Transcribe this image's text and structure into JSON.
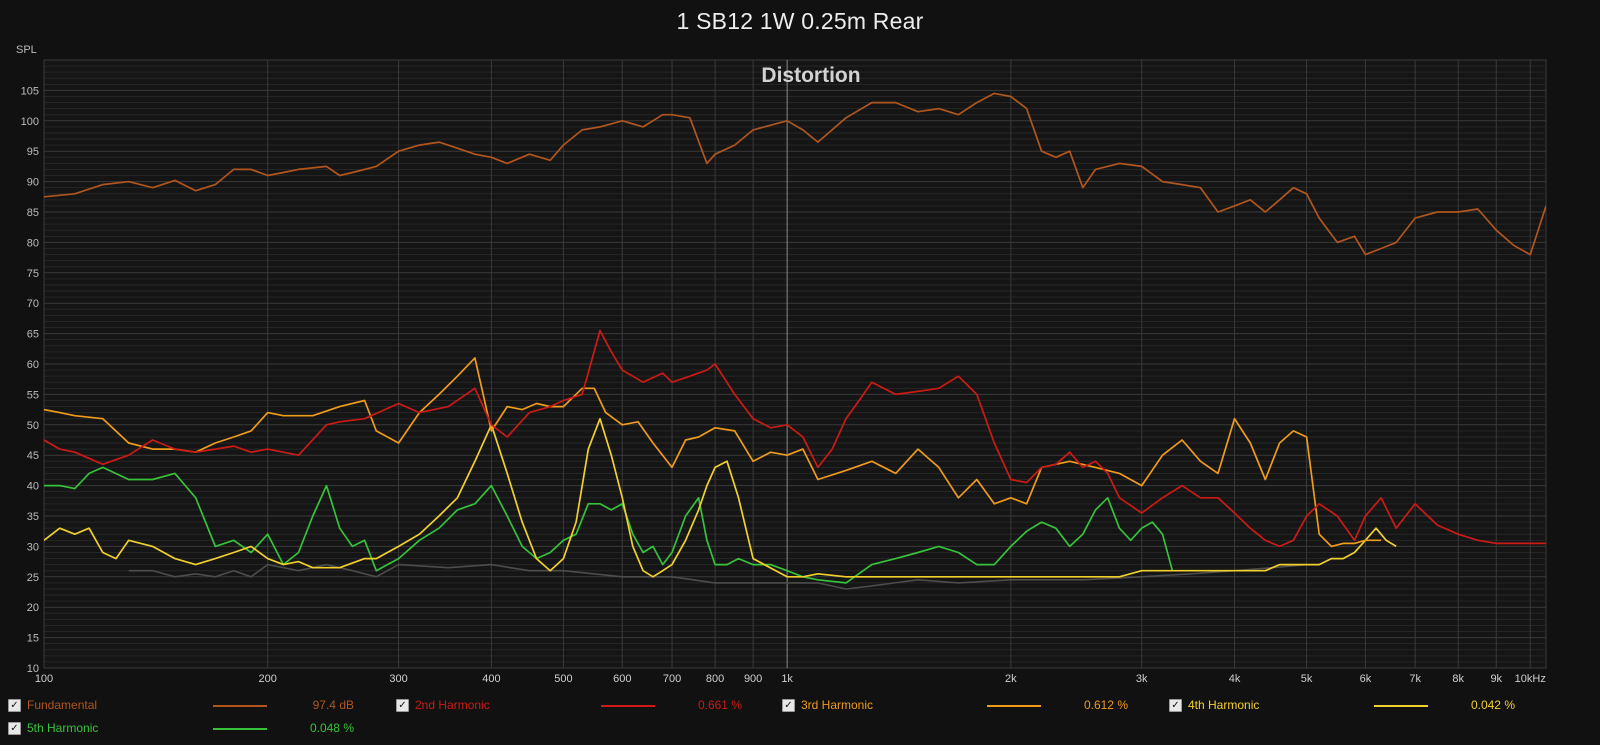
{
  "window": {
    "title": "1 SB12 1W 0.25m Rear"
  },
  "chart_data": {
    "type": "line",
    "title": "Distortion",
    "ylabel": "SPL",
    "xlabel": "",
    "xscale": "log",
    "xlim": [
      100,
      10500
    ],
    "ylim": [
      10,
      110
    ],
    "grid": true,
    "legend_placement": "bottom",
    "y_ticks": [
      "10",
      "15",
      "20",
      "25",
      "30",
      "35",
      "40",
      "45",
      "50",
      "55",
      "60",
      "65",
      "70",
      "75",
      "80",
      "85",
      "90",
      "95",
      "100",
      "105"
    ],
    "x_ticks": [
      {
        "value": 100,
        "label": "100"
      },
      {
        "value": 200,
        "label": "200"
      },
      {
        "value": 300,
        "label": "300"
      },
      {
        "value": 400,
        "label": "400"
      },
      {
        "value": 500,
        "label": "500"
      },
      {
        "value": 600,
        "label": "600"
      },
      {
        "value": 700,
        "label": "700"
      },
      {
        "value": 800,
        "label": "800"
      },
      {
        "value": 900,
        "label": "900"
      },
      {
        "value": 1000,
        "label": "1k"
      },
      {
        "value": 2000,
        "label": "2k"
      },
      {
        "value": 3000,
        "label": "3k"
      },
      {
        "value": 4000,
        "label": "4k"
      },
      {
        "value": 5000,
        "label": "5k"
      },
      {
        "value": 6000,
        "label": "6k"
      },
      {
        "value": 7000,
        "label": "7k"
      },
      {
        "value": 8000,
        "label": "8k"
      },
      {
        "value": 9000,
        "label": "9k"
      },
      {
        "value": 10000,
        "label": "10kHz"
      }
    ],
    "series": [
      {
        "name": "Fundamental",
        "color": "#b0561e",
        "x": [
          100,
          110,
          120,
          130,
          140,
          150,
          160,
          170,
          180,
          190,
          200,
          210,
          220,
          240,
          250,
          260,
          280,
          300,
          320,
          340,
          360,
          380,
          400,
          420,
          450,
          480,
          500,
          530,
          560,
          600,
          640,
          680,
          700,
          740,
          780,
          800,
          850,
          900,
          1000,
          1050,
          1100,
          1200,
          1300,
          1400,
          1500,
          1600,
          1700,
          1800,
          1900,
          2000,
          2100,
          2200,
          2300,
          2400,
          2500,
          2600,
          2800,
          3000,
          3200,
          3400,
          3600,
          3800,
          4000,
          4200,
          4400,
          4600,
          4800,
          5000,
          5200,
          5500,
          5800,
          6000,
          6300,
          6600,
          7000,
          7500,
          8000,
          8500,
          9000,
          9500,
          10000,
          10500
        ],
        "values": [
          87.5,
          88,
          89.5,
          90,
          89,
          90.2,
          88.5,
          89.5,
          92,
          92,
          91,
          91.5,
          92,
          92.5,
          91,
          91.5,
          92.5,
          95,
          96,
          96.5,
          95.5,
          94.5,
          94,
          93,
          94.5,
          93.5,
          96,
          98.5,
          99,
          100,
          99,
          101,
          101,
          100.5,
          93,
          94.5,
          96,
          98.5,
          100,
          98.5,
          96.5,
          100.5,
          103,
          103,
          101.5,
          102,
          101,
          103,
          104.5,
          104,
          102,
          95,
          94,
          95,
          89,
          92,
          93,
          92.5,
          90,
          89.5,
          89,
          85,
          86,
          87,
          85,
          87,
          89,
          88,
          84,
          80,
          81,
          78,
          79,
          80,
          84,
          85,
          85,
          85.5,
          82,
          79.5,
          78,
          86
        ]
      },
      {
        "name": "2nd Harmonic",
        "color": "#cc1b14",
        "x": [
          100,
          105,
          110,
          120,
          130,
          140,
          150,
          160,
          170,
          180,
          190,
          200,
          220,
          240,
          250,
          270,
          300,
          320,
          350,
          380,
          400,
          420,
          450,
          480,
          500,
          530,
          560,
          580,
          600,
          640,
          680,
          700,
          740,
          780,
          800,
          850,
          900,
          950,
          1000,
          1050,
          1100,
          1150,
          1200,
          1250,
          1300,
          1400,
          1500,
          1600,
          1700,
          1800,
          1900,
          2000,
          2100,
          2200,
          2300,
          2400,
          2500,
          2600,
          2700,
          2800,
          3000,
          3200,
          3400,
          3600,
          3800,
          4000,
          4200,
          4400,
          4600,
          4800,
          5000,
          5200,
          5500,
          5800,
          6000,
          6300,
          6600,
          7000,
          7500,
          8000,
          8500,
          9000,
          9500,
          10000,
          10500
        ],
        "values": [
          47.5,
          46,
          45.5,
          43.5,
          45,
          47.5,
          46,
          45.5,
          46,
          46.5,
          45.5,
          46,
          45,
          50,
          50.5,
          51,
          53.5,
          52,
          53,
          56,
          50,
          48,
          52,
          53,
          54,
          55,
          65.5,
          62,
          59,
          57,
          58.5,
          57,
          58,
          59,
          60,
          55,
          51,
          49.5,
          50,
          48,
          43,
          46,
          51,
          54,
          57,
          55,
          55.5,
          56,
          58,
          55,
          47,
          41,
          40.5,
          43,
          43.5,
          45.5,
          43,
          44,
          42,
          38,
          35.5,
          38,
          40,
          38,
          38,
          35.5,
          33,
          31,
          30,
          31,
          35,
          37,
          35,
          31,
          35,
          38,
          33,
          37,
          33.5,
          32,
          31,
          30.5,
          30.5,
          30.5,
          30.5
        ]
      },
      {
        "name": "3rd Harmonic",
        "color": "#ef9b1c",
        "x": [
          100,
          105,
          110,
          120,
          130,
          140,
          150,
          160,
          170,
          180,
          190,
          200,
          210,
          230,
          250,
          270,
          280,
          300,
          320,
          340,
          360,
          380,
          400,
          420,
          440,
          460,
          480,
          500,
          530,
          550,
          570,
          600,
          630,
          660,
          700,
          730,
          760,
          800,
          850,
          900,
          950,
          1000,
          1050,
          1100,
          1200,
          1300,
          1400,
          1500,
          1600,
          1700,
          1800,
          1900,
          2000,
          2100,
          2200,
          2400,
          2600,
          2800,
          3000,
          3200,
          3400,
          3600,
          3800,
          4000,
          4200,
          4400,
          4600,
          4800,
          5000,
          5200,
          5400,
          5600,
          5800,
          6000,
          6300
        ],
        "values": [
          52.5,
          52,
          51.5,
          51,
          47,
          46,
          46,
          45.5,
          47,
          48,
          49,
          52,
          51.5,
          51.5,
          53,
          54,
          49,
          47,
          52,
          55,
          58,
          61,
          49,
          53,
          52.5,
          53.5,
          53,
          53,
          56,
          56,
          52,
          50,
          50.5,
          47,
          43,
          47.5,
          48,
          49.5,
          49,
          44,
          45.5,
          45,
          46,
          41,
          42.5,
          44,
          42,
          46,
          43,
          38,
          41,
          37,
          38,
          37,
          43,
          44,
          43,
          42,
          40,
          45,
          47.5,
          44,
          42,
          51,
          47,
          41,
          47,
          49,
          48,
          32,
          30,
          30.5,
          30.5,
          31,
          31
        ]
      },
      {
        "name": "4th Harmonic",
        "color": "#f1d02e",
        "x": [
          100,
          105,
          110,
          115,
          120,
          125,
          130,
          140,
          150,
          160,
          170,
          180,
          190,
          200,
          210,
          220,
          230,
          250,
          270,
          280,
          300,
          320,
          340,
          360,
          380,
          400,
          420,
          440,
          460,
          480,
          500,
          520,
          540,
          560,
          580,
          600,
          620,
          640,
          660,
          680,
          700,
          730,
          760,
          780,
          800,
          830,
          860,
          900,
          1000,
          1050,
          1100,
          1200,
          1300,
          1400,
          1500,
          1600,
          1700,
          1800,
          1900,
          2000,
          2200,
          2400,
          2600,
          2800,
          3000,
          3200,
          3400,
          3600,
          3800,
          4000,
          4200,
          4400,
          4600,
          4800,
          5000,
          5200,
          5400,
          5600,
          5800,
          6000,
          6200,
          6400,
          6600
        ],
        "values": [
          31,
          33,
          32,
          33,
          29,
          28,
          31,
          30,
          28,
          27,
          28,
          29,
          30,
          28,
          27,
          27.5,
          26.5,
          26.5,
          28,
          28,
          30,
          32,
          35,
          38,
          44,
          50,
          42,
          34,
          28,
          26,
          28,
          34,
          46,
          51,
          45,
          38,
          30,
          26,
          25,
          26,
          27,
          31,
          36,
          40,
          43,
          44,
          38,
          28,
          25,
          25,
          25.5,
          25,
          25,
          25,
          25,
          25,
          25,
          25,
          25,
          25,
          25,
          25,
          25,
          25,
          26,
          26,
          26,
          26,
          26,
          26,
          26,
          26,
          27,
          27,
          27,
          27,
          28,
          28,
          29,
          31,
          33,
          31,
          30
        ]
      },
      {
        "name": "5th Harmonic",
        "color": "#36c23a",
        "x": [
          100,
          105,
          110,
          115,
          120,
          130,
          140,
          150,
          160,
          170,
          180,
          190,
          200,
          210,
          220,
          230,
          240,
          250,
          260,
          270,
          280,
          300,
          320,
          340,
          360,
          380,
          400,
          420,
          440,
          460,
          480,
          500,
          520,
          540,
          560,
          580,
          600,
          620,
          640,
          660,
          680,
          700,
          730,
          760,
          780,
          800,
          830,
          860,
          900,
          950,
          1000,
          1050,
          1100,
          1200,
          1300,
          1400,
          1500,
          1600,
          1700,
          1800,
          1900,
          2000,
          2100,
          2200,
          2300,
          2400,
          2500,
          2600,
          2700,
          2800,
          2900,
          3000,
          3100,
          3200,
          3300
        ],
        "values": [
          40,
          40,
          39.5,
          42,
          43,
          41,
          41,
          42,
          38,
          30,
          31,
          29,
          32,
          27,
          29,
          35,
          40,
          33,
          30,
          31,
          26,
          28,
          31,
          33,
          36,
          37,
          40,
          35,
          30,
          28,
          29,
          31,
          32,
          37,
          37,
          36,
          37,
          32,
          29,
          30,
          27,
          29,
          35,
          38,
          31,
          27,
          27,
          28,
          27,
          27,
          26,
          25,
          24.5,
          24,
          27,
          28,
          29,
          30,
          29,
          27,
          27,
          30,
          32.5,
          34,
          33,
          30,
          32,
          36,
          38,
          33,
          31,
          33,
          34,
          32,
          26
        ]
      }
    ],
    "noise_floor": {
      "color": "#4c4c4c",
      "x": [
        130,
        140,
        150,
        160,
        170,
        180,
        190,
        200,
        220,
        240,
        260,
        280,
        300,
        350,
        400,
        450,
        500,
        600,
        700,
        800,
        900,
        1000,
        1100,
        1200,
        1300,
        1500,
        1700,
        2000,
        2500,
        3000,
        3500,
        4000,
        4500,
        5000
      ],
      "values": [
        26,
        26,
        25,
        25.5,
        25,
        26,
        25,
        27,
        26,
        27,
        26,
        25,
        27,
        26.5,
        27,
        26,
        26,
        25,
        25,
        24,
        24,
        24,
        24,
        23,
        23.5,
        24.5,
        24,
        24.5,
        24.5,
        25,
        25.5,
        26,
        26.5,
        27
      ]
    }
  },
  "legend": {
    "items": [
      {
        "label": "Fundamental",
        "value": "97.4 dB",
        "color": "#b0561e",
        "checked": "✓"
      },
      {
        "label": "2nd Harmonic",
        "value": "0.661 %",
        "color": "#cc1b14",
        "checked": "✓"
      },
      {
        "label": "3rd Harmonic",
        "value": "0.612 %",
        "color": "#ef9b1c",
        "checked": "✓"
      },
      {
        "label": "4th Harmonic",
        "value": "0.042 %",
        "color": "#f1d02e",
        "checked": "✓"
      },
      {
        "label": "5th Harmonic",
        "value": "0.048 %",
        "color": "#36c23a",
        "checked": "✓"
      }
    ]
  }
}
